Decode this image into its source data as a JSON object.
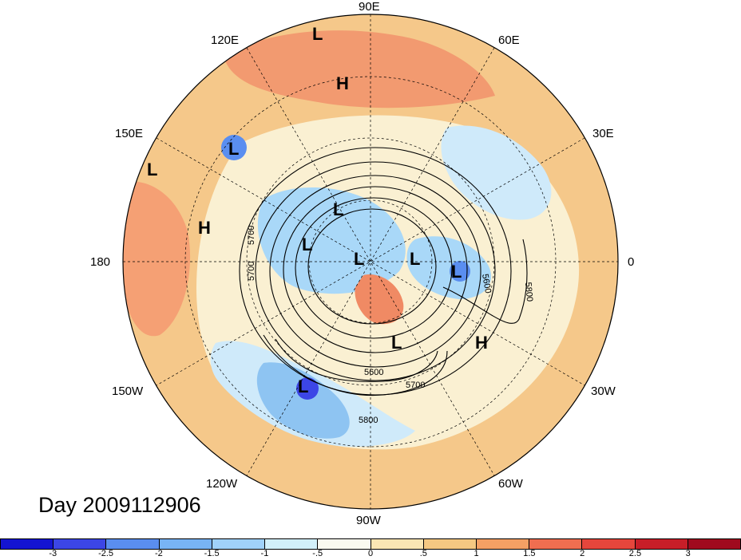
{
  "title": "Day 2009112906",
  "longitude_labels": {
    "e90": "90E",
    "e120": "120E",
    "e60": "60E",
    "e150": "150E",
    "e30": "30E",
    "w180": "180",
    "zero": "0",
    "w150": "150W",
    "w30": "30W",
    "w120": "120W",
    "w60": "60W",
    "w90": "90W"
  },
  "centers": {
    "l1": "L",
    "h1": "H",
    "l2": "L",
    "l3": "L",
    "h2": "H",
    "l4": "L",
    "l5": "L",
    "l6": "L",
    "l7": "L",
    "l8": "L",
    "l9": "L",
    "h3": "H",
    "l10": "L"
  },
  "contour_labels": {
    "c1": "5700",
    "c2": "5700",
    "c3": "5600",
    "c4": "5800",
    "c5": "5600",
    "c6": "5700",
    "c7": "5800"
  },
  "colorbar": {
    "colors": [
      "#1414d2",
      "#3c46e6",
      "#5a8ef0",
      "#78b4f5",
      "#a0d2fa",
      "#d2f0fa",
      "#fafaf0",
      "#fae6b4",
      "#f5c882",
      "#f5a064",
      "#f06e50",
      "#e6463c",
      "#c81e28",
      "#a00a1e"
    ],
    "labels": [
      "-3",
      "-2.5",
      "-2",
      "-1.5",
      "-1",
      "-.5",
      "0",
      ".5",
      "1",
      "1.5",
      "2",
      "2.5",
      "3"
    ]
  }
}
